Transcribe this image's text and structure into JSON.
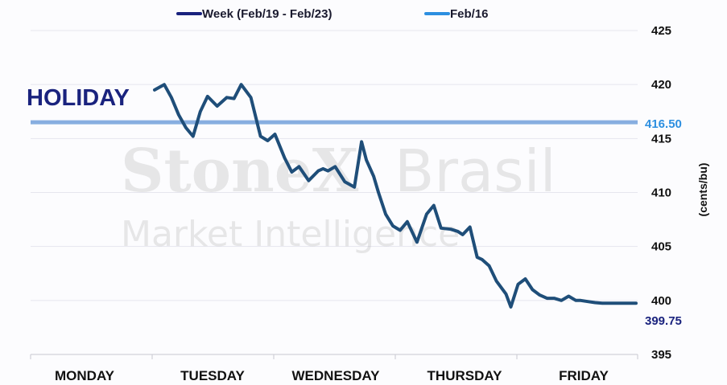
{
  "chart_data": {
    "type": "line",
    "ylabel": "(cents/bu)",
    "ylim": [
      395,
      425
    ],
    "yticks": [
      395,
      400,
      405,
      410,
      415,
      420,
      425
    ],
    "categories": [
      "MONDAY",
      "TUESDAY",
      "WEDNESDAY",
      "THURSDAY",
      "FRIDAY"
    ],
    "grid": true,
    "legend_position": "top",
    "series": [
      {
        "name": "Week (Feb/19 - Feb/23)",
        "color": "#1f4e79",
        "x": [
          1.0,
          1.08,
          1.14,
          1.2,
          1.26,
          1.32,
          1.38,
          1.44,
          1.52,
          1.6,
          1.66,
          1.72,
          1.8,
          1.88,
          1.94,
          2.0,
          2.08,
          2.14,
          2.2,
          2.28,
          2.36,
          2.4,
          2.44,
          2.5,
          2.58,
          2.66,
          2.72,
          2.76,
          2.82,
          2.86,
          2.92,
          2.98,
          3.04,
          3.1,
          3.18,
          3.26,
          3.32,
          3.38,
          3.46,
          3.52,
          3.56,
          3.62,
          3.68,
          3.72,
          3.78,
          3.84,
          3.92,
          3.96,
          4.02,
          4.08,
          4.14,
          4.2,
          4.26,
          4.32,
          4.38,
          4.44,
          4.5,
          4.54,
          4.6,
          4.66,
          4.72,
          4.78,
          4.84,
          4.9,
          4.96,
          5.0
        ],
        "y": [
          419.5,
          420.0,
          418.8,
          417.2,
          416.0,
          415.2,
          417.5,
          418.9,
          418.0,
          418.8,
          418.7,
          420.0,
          418.8,
          415.2,
          414.8,
          415.4,
          413.2,
          411.9,
          412.4,
          411.1,
          412.0,
          412.2,
          412.0,
          412.4,
          411.0,
          410.5,
          414.7,
          413.0,
          411.5,
          410.0,
          408.0,
          406.9,
          406.5,
          407.3,
          405.4,
          408.0,
          408.8,
          406.7,
          406.6,
          406.4,
          406.1,
          406.8,
          404.0,
          403.8,
          403.2,
          401.8,
          400.6,
          399.4,
          401.5,
          402.0,
          401.0,
          400.5,
          400.2,
          400.2,
          400.0,
          400.4,
          400.0,
          400.0,
          399.9,
          399.8,
          399.75,
          399.75,
          399.75,
          399.75,
          399.75,
          399.75
        ]
      },
      {
        "name": "Feb/16",
        "color": "#87aee0",
        "value": 416.5
      }
    ],
    "annotations": {
      "holiday": "HOLIDAY",
      "feb16_value": "416.50",
      "last_value": "399.75"
    }
  },
  "watermark": {
    "brand": "StoneX",
    "brand_suffix": "Brasil",
    "subtitle": "Market Intelligence"
  }
}
